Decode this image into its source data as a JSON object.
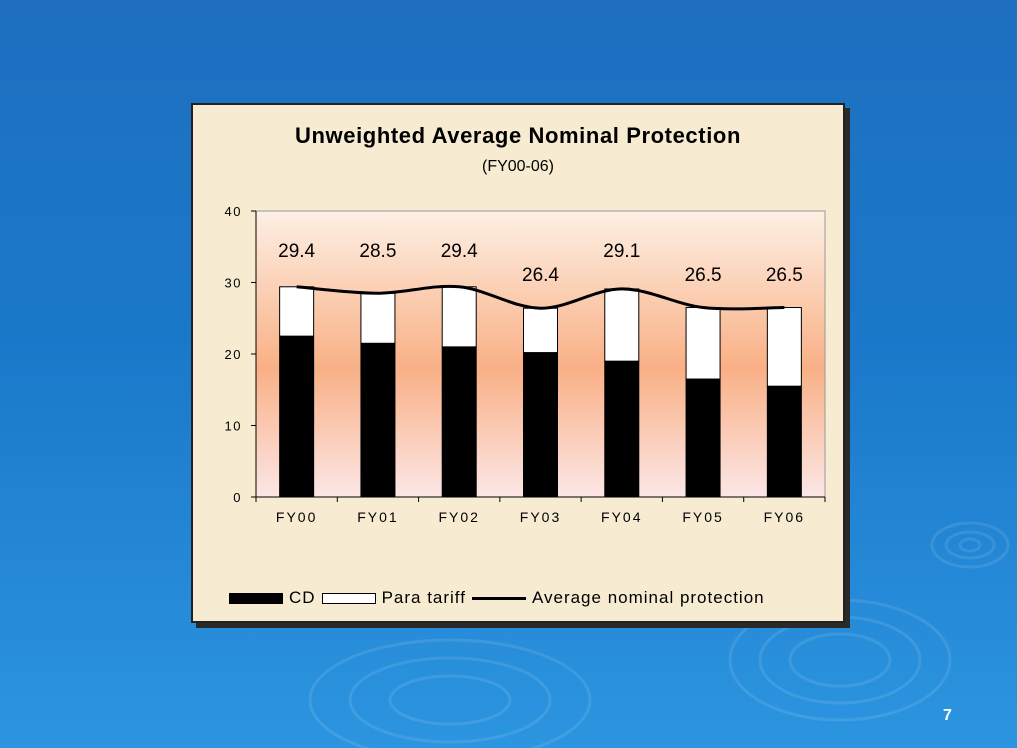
{
  "slide": {
    "number": "7"
  },
  "chart_data": {
    "type": "bar",
    "title": "Unweighted Average Nominal Protection",
    "subtitle": "(FY00-06)",
    "categories": [
      "FY00",
      "FY01",
      "FY02",
      "FY03",
      "FY04",
      "FY05",
      "FY06"
    ],
    "series": [
      {
        "name": "CD",
        "kind": "stacked-bar",
        "color": "#000000",
        "values": [
          22.5,
          21.5,
          21.0,
          20.2,
          19.0,
          16.5,
          15.5
        ]
      },
      {
        "name": "Para tariff",
        "kind": "stacked-bar",
        "color": "#ffffff",
        "values": [
          6.9,
          7.0,
          8.4,
          6.2,
          10.1,
          10.0,
          11.0
        ]
      },
      {
        "name": "Average nominal protection",
        "kind": "line",
        "color": "#000000",
        "values": [
          29.4,
          28.5,
          29.4,
          26.4,
          29.1,
          26.5,
          26.5
        ]
      }
    ],
    "data_labels": [
      "29.4",
      "28.5",
      "29.4",
      "26.4",
      "29.1",
      "26.5",
      "26.5"
    ],
    "ylim": [
      0,
      40
    ],
    "yticks": [
      "0",
      "10",
      "20",
      "30",
      "40"
    ],
    "legend_position": "bottom",
    "colors": {
      "plot_top": "#fdf0e4",
      "plot_mid": "#f9b086",
      "plot_bottom": "#fbe6e6"
    }
  }
}
